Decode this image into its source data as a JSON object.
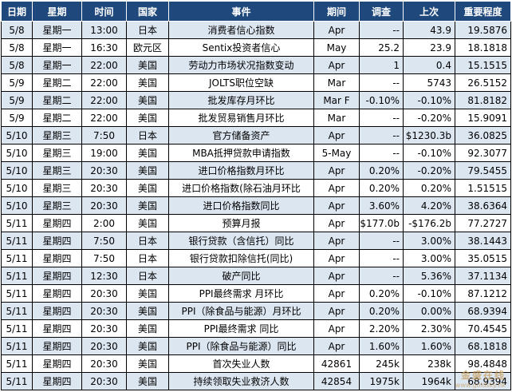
{
  "columns": [
    "日期",
    "星期",
    "时间",
    "国家",
    "事件",
    "期间",
    "调查",
    "上次",
    "重要程度"
  ],
  "rows": [
    [
      "5/8",
      "星期一",
      "13:00",
      "日本",
      "消费者信心指数",
      "Apr",
      "--",
      "43.9",
      "19.5876"
    ],
    [
      "5/8",
      "星期一",
      "16:30",
      "欧元区",
      "Sentix投资者信心",
      "May",
      "25.2",
      "23.9",
      "18.1818"
    ],
    [
      "5/8",
      "星期一",
      "22:00",
      "美国",
      "劳动力市场状况指数变动",
      "Apr",
      "1",
      "0.4",
      "15.1515"
    ],
    [
      "5/9",
      "星期二",
      "22:00",
      "美国",
      "JOLTS职位空缺",
      "Mar",
      "--",
      "5743",
      "26.5152"
    ],
    [
      "5/9",
      "星期二",
      "22:00",
      "美国",
      "批发库存月环比",
      "Mar F",
      "-0.10%",
      "-0.10%",
      "81.8182"
    ],
    [
      "5/9",
      "星期二",
      "22:00",
      "美国",
      "批发贸易销售月环比",
      "Mar",
      "--",
      "-0.20%",
      "15.9091"
    ],
    [
      "5/10",
      "星期三",
      "7:50",
      "日本",
      "官方储备资产",
      "Apr",
      "--",
      "$1230.3b",
      "36.0825"
    ],
    [
      "5/10",
      "星期三",
      "19:00",
      "美国",
      "MBA抵押贷款申请指数",
      "5-May",
      "--",
      "-0.10%",
      "92.3077"
    ],
    [
      "5/10",
      "星期三",
      "20:30",
      "美国",
      "进口价格指数月环比",
      "Apr",
      "0.20%",
      "-0.20%",
      "79.5455"
    ],
    [
      "5/10",
      "星期三",
      "20:30",
      "美国",
      "进口价格指数(除石油月环比",
      "Apr",
      "0.20%",
      "0.20%",
      "1.51515"
    ],
    [
      "5/10",
      "星期三",
      "20:30",
      "美国",
      "进口价格指数同比",
      "Apr",
      "3.60%",
      "4.20%",
      "38.6364"
    ],
    [
      "5/11",
      "星期四",
      "2:00",
      "美国",
      "预算月报",
      "Apr",
      "$177.0b",
      "-$176.2b",
      "77.2727"
    ],
    [
      "5/11",
      "星期四",
      "7:50",
      "日本",
      "银行贷款（含信托）同比",
      "Apr",
      "--",
      "3.00%",
      "38.1443"
    ],
    [
      "5/11",
      "星期四",
      "7:50",
      "日本",
      "银行贷款扣除信托(同比)",
      "Apr",
      "--",
      "3.00%",
      "35.0515"
    ],
    [
      "5/11",
      "星期四",
      "12:30",
      "日本",
      "破产同比",
      "Apr",
      "--",
      "5.36%",
      "37.1134"
    ],
    [
      "5/11",
      "星期四",
      "20:30",
      "美国",
      "PPI最终需求 月环比",
      "Apr",
      "0.20%",
      "-0.10%",
      "87.1212"
    ],
    [
      "5/11",
      "星期四",
      "20:30",
      "美国",
      "PPI（除食品与能源）月环比",
      "Apr",
      "0.20%",
      "0.00%",
      "68.9394"
    ],
    [
      "5/11",
      "星期四",
      "20:30",
      "美国",
      "PPI最终需求 同比",
      "Apr",
      "2.20%",
      "2.30%",
      "70.4545"
    ],
    [
      "5/11",
      "星期四",
      "20:30",
      "美国",
      "PPI（除食品与能源）同比",
      "Apr",
      "1.60%",
      "1.60%",
      "68.1818"
    ],
    [
      "5/11",
      "星期四",
      "20:30",
      "美国",
      "首次失业人数",
      "42861",
      "245k",
      "238k",
      "98.4848"
    ],
    [
      "5/11",
      "星期四",
      "20:30",
      "美国",
      "持续领取失业救济人数",
      "42854",
      "1975k",
      "1964k",
      "68.9394"
    ]
  ],
  "watermark": {
    "text": "金盛在线",
    "url": "www.goldsky.hk"
  },
  "colors": {
    "header_bg": "#1f497d",
    "header_text": "#ffffff",
    "row_odd": "#dce6f1",
    "row_even": "#ffffff"
  }
}
